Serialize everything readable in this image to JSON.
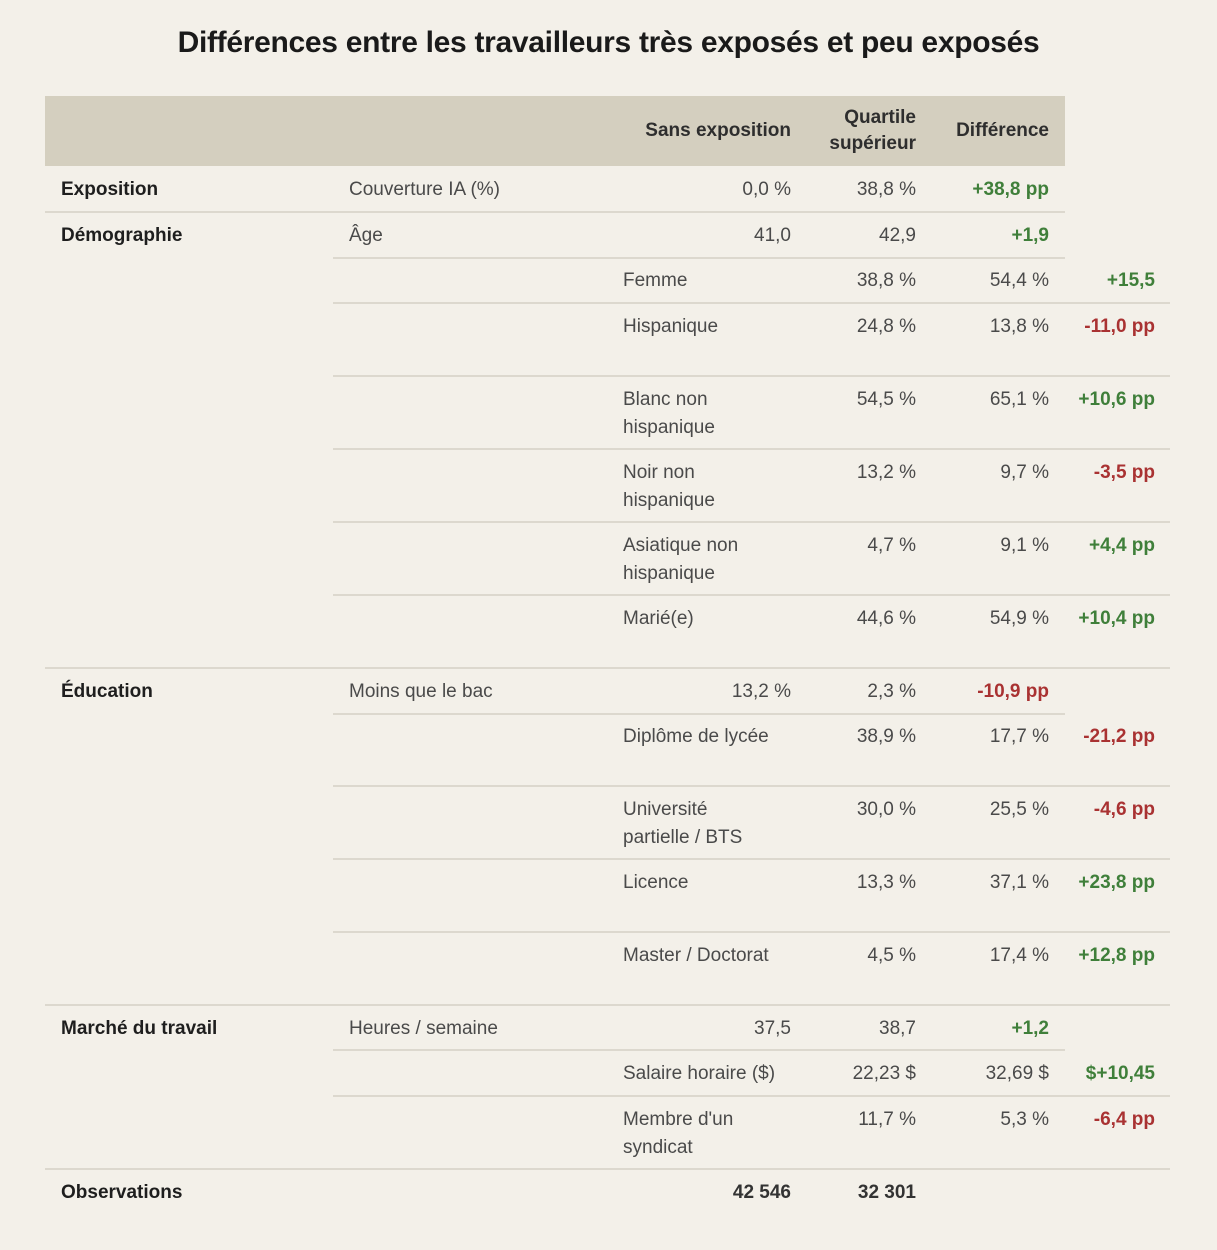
{
  "title": "Différences entre les travailleurs très exposés et peu exposés",
  "columns": {
    "no_exposure": "Sans exposition",
    "top_quartile": "Quartile supérieur",
    "difference": "Différence"
  },
  "colors": {
    "background": "#f3f0e9",
    "header_band": "#d4cfbf",
    "positive": "#3f7f3a",
    "negative": "#a93232",
    "divider": "#dcd8ce"
  },
  "rows": [
    {
      "category": "Exposition",
      "label": "Couverture IA (%)",
      "no_exposure": "0,0 %",
      "top_quartile": "38,8 %",
      "difference": "+38,8 pp",
      "sign": "pos"
    },
    {
      "category": "Démographie",
      "label": "Âge",
      "no_exposure": "41,0",
      "top_quartile": "42,9",
      "difference": "+1,9",
      "sign": "pos"
    },
    {
      "category": "",
      "label": "Femme",
      "no_exposure": "38,8 %",
      "top_quartile": "54,4 %",
      "difference": "+15,5",
      "sign": "pos"
    },
    {
      "category": "",
      "label": "Hispanique",
      "no_exposure": "24,8 %",
      "top_quartile": "13,8 %",
      "difference": "-11,0 pp",
      "sign": "neg"
    },
    {
      "category": "",
      "label": "Blanc non hispanique",
      "no_exposure": "54,5 %",
      "top_quartile": "65,1 %",
      "difference": "+10,6 pp",
      "sign": "pos"
    },
    {
      "category": "",
      "label": "Noir non hispanique",
      "no_exposure": "13,2 %",
      "top_quartile": "9,7 %",
      "difference": "-3,5 pp",
      "sign": "neg"
    },
    {
      "category": "",
      "label": "Asiatique non hispanique",
      "no_exposure": "4,7 %",
      "top_quartile": "9,1 %",
      "difference": "+4,4 pp",
      "sign": "pos"
    },
    {
      "category": "",
      "label": "Marié(e)",
      "no_exposure": "44,6 %",
      "top_quartile": "54,9 %",
      "difference": "+10,4 pp",
      "sign": "pos"
    },
    {
      "category": "Éducation",
      "label": "Moins que le bac",
      "no_exposure": "13,2 %",
      "top_quartile": "2,3 %",
      "difference": "-10,9 pp",
      "sign": "neg"
    },
    {
      "category": "",
      "label": "Diplôme de lycée",
      "no_exposure": "38,9 %",
      "top_quartile": "17,7 %",
      "difference": "-21,2 pp",
      "sign": "neg"
    },
    {
      "category": "",
      "label": "Université partielle / BTS",
      "no_exposure": "30,0 %",
      "top_quartile": "25,5 %",
      "difference": "-4,6 pp",
      "sign": "neg"
    },
    {
      "category": "",
      "label": "Licence",
      "no_exposure": "13,3 %",
      "top_quartile": "37,1 %",
      "difference": "+23,8 pp",
      "sign": "pos"
    },
    {
      "category": "",
      "label": "Master / Doctorat",
      "no_exposure": "4,5 %",
      "top_quartile": "17,4 %",
      "difference": "+12,8 pp",
      "sign": "pos"
    },
    {
      "category": "Marché du travail",
      "label": "Heures / semaine",
      "no_exposure": "37,5",
      "top_quartile": "38,7",
      "difference": "+1,2",
      "sign": "pos"
    },
    {
      "category": "",
      "label": "Salaire horaire ($)",
      "no_exposure": "22,23 $",
      "top_quartile": "32,69 $",
      "difference": "$+10,45",
      "sign": "pos"
    },
    {
      "category": "",
      "label": "Membre d'un syndicat",
      "no_exposure": "11,7 %",
      "top_quartile": "5,3 %",
      "difference": "-6,4 pp",
      "sign": "neg"
    }
  ],
  "observations": {
    "label": "Observations",
    "no_exposure": "42 546",
    "top_quartile": "32 301"
  }
}
